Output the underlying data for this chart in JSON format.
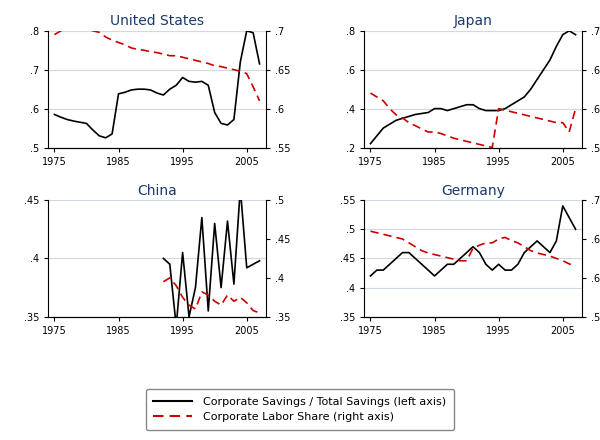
{
  "title_color": "#1a3a6b",
  "countries": [
    "United States",
    "Japan",
    "China",
    "Germany"
  ],
  "us": {
    "years_left": [
      1975,
      1976,
      1977,
      1978,
      1979,
      1980,
      1981,
      1982,
      1983,
      1984,
      1985,
      1986,
      1987,
      1988,
      1989,
      1990,
      1991,
      1992,
      1993,
      1994,
      1995,
      1996,
      1997,
      1998,
      1999,
      2000,
      2001,
      2002,
      2003,
      2004,
      2005,
      2006,
      2007
    ],
    "left_vals": [
      0.585,
      0.578,
      0.572,
      0.568,
      0.565,
      0.562,
      0.545,
      0.53,
      0.525,
      0.535,
      0.638,
      0.642,
      0.648,
      0.65,
      0.65,
      0.648,
      0.64,
      0.635,
      0.65,
      0.66,
      0.68,
      0.67,
      0.668,
      0.67,
      0.66,
      0.59,
      0.562,
      0.558,
      0.572,
      0.72,
      0.8,
      0.795,
      0.715
    ],
    "years_right": [
      1975,
      1976,
      1977,
      1978,
      1979,
      1980,
      1981,
      1982,
      1983,
      1984,
      1985,
      1986,
      1987,
      1988,
      1989,
      1990,
      1991,
      1992,
      1993,
      1994,
      1995,
      1996,
      1997,
      1998,
      1999,
      2000,
      2001,
      2002,
      2003,
      2004,
      2005,
      2006,
      2007
    ],
    "right_vals": [
      0.695,
      0.7,
      0.705,
      0.706,
      0.704,
      0.702,
      0.7,
      0.698,
      0.692,
      0.688,
      0.685,
      0.682,
      0.678,
      0.676,
      0.675,
      0.673,
      0.672,
      0.67,
      0.668,
      0.668,
      0.666,
      0.664,
      0.662,
      0.66,
      0.658,
      0.655,
      0.654,
      0.652,
      0.65,
      0.648,
      0.645,
      0.628,
      0.61
    ],
    "ylim_left": [
      0.5,
      0.8
    ],
    "ylim_right": [
      0.55,
      0.7
    ],
    "yticks_left": [
      0.5,
      0.6,
      0.7,
      0.8
    ],
    "yticks_right": [
      0.55,
      0.6,
      0.65,
      0.7
    ],
    "ytick_labels_left": [
      ".5",
      ".6",
      ".7",
      ".8"
    ],
    "ytick_labels_right": [
      ".55",
      ".6",
      ".65",
      ".7"
    ]
  },
  "japan": {
    "years_left": [
      1975,
      1976,
      1977,
      1978,
      1979,
      1980,
      1981,
      1982,
      1983,
      1984,
      1985,
      1986,
      1987,
      1988,
      1989,
      1990,
      1991,
      1992,
      1993,
      1994,
      1995,
      1996,
      1997,
      1998,
      1999,
      2000,
      2001,
      2002,
      2003,
      2004,
      2005,
      2006,
      2007
    ],
    "left_vals": [
      0.22,
      0.26,
      0.3,
      0.32,
      0.34,
      0.35,
      0.36,
      0.37,
      0.375,
      0.38,
      0.4,
      0.4,
      0.39,
      0.4,
      0.41,
      0.42,
      0.42,
      0.4,
      0.39,
      0.39,
      0.39,
      0.4,
      0.42,
      0.44,
      0.46,
      0.5,
      0.55,
      0.6,
      0.65,
      0.72,
      0.78,
      0.8,
      0.78
    ],
    "years_right": [
      1975,
      1976,
      1977,
      1978,
      1979,
      1980,
      1981,
      1982,
      1983,
      1984,
      1985,
      1986,
      1987,
      1988,
      1989,
      1990,
      1991,
      1992,
      1993,
      1994,
      1995,
      1996,
      1997,
      1998,
      1999,
      2000,
      2001,
      2002,
      2003,
      2004,
      2005,
      2006,
      2007
    ],
    "right_vals": [
      0.62,
      0.615,
      0.61,
      0.6,
      0.592,
      0.588,
      0.582,
      0.578,
      0.574,
      0.57,
      0.57,
      0.568,
      0.565,
      0.562,
      0.56,
      0.558,
      0.556,
      0.554,
      0.552,
      0.55,
      0.6,
      0.598,
      0.596,
      0.594,
      0.592,
      0.59,
      0.588,
      0.586,
      0.584,
      0.582,
      0.582,
      0.57,
      0.6
    ],
    "ylim_left": [
      0.2,
      0.8
    ],
    "ylim_right": [
      0.55,
      0.7
    ],
    "yticks_left": [
      0.2,
      0.4,
      0.6,
      0.8
    ],
    "yticks_right": [
      0.55,
      0.6,
      0.65,
      0.7
    ],
    "ytick_labels_left": [
      ".2",
      ".4",
      ".6",
      ".8"
    ],
    "ytick_labels_right": [
      ".55",
      ".6",
      ".65",
      ".7"
    ]
  },
  "china": {
    "years_left": [
      1992,
      1993,
      1994,
      1995,
      1996,
      1997,
      1998,
      1999,
      2000,
      2001,
      2002,
      2003,
      2004,
      2005,
      2006,
      2007
    ],
    "left_vals": [
      0.4,
      0.395,
      0.342,
      0.405,
      0.35,
      0.375,
      0.435,
      0.355,
      0.43,
      0.375,
      0.432,
      0.378,
      0.46,
      0.392,
      0.395,
      0.398
    ],
    "years_right": [
      1992,
      1993,
      1994,
      1995,
      1996,
      1997,
      1998,
      1999,
      2000,
      2001,
      2002,
      2003,
      2004,
      2005,
      2006,
      2007
    ],
    "right_vals": [
      0.395,
      0.4,
      0.39,
      0.375,
      0.365,
      0.36,
      0.382,
      0.378,
      0.37,
      0.365,
      0.378,
      0.37,
      0.375,
      0.368,
      0.358,
      0.355
    ],
    "ylim_left": [
      0.35,
      0.45
    ],
    "ylim_right": [
      0.35,
      0.5
    ],
    "yticks_left": [
      0.35,
      0.4,
      0.45
    ],
    "yticks_right": [
      0.35,
      0.4,
      0.45,
      0.5
    ],
    "ytick_labels_left": [
      ".35",
      ".4",
      ".45"
    ],
    "ytick_labels_right": [
      ".35",
      ".4",
      ".45",
      ".5"
    ]
  },
  "germany": {
    "years_left": [
      1975,
      1976,
      1977,
      1978,
      1979,
      1980,
      1981,
      1982,
      1983,
      1984,
      1985,
      1986,
      1987,
      1988,
      1989,
      1990,
      1991,
      1992,
      1993,
      1994,
      1995,
      1996,
      1997,
      1998,
      1999,
      2000,
      2001,
      2002,
      2003,
      2004,
      2005,
      2006,
      2007
    ],
    "left_vals": [
      0.42,
      0.43,
      0.43,
      0.44,
      0.45,
      0.46,
      0.46,
      0.45,
      0.44,
      0.43,
      0.42,
      0.43,
      0.44,
      0.44,
      0.45,
      0.46,
      0.47,
      0.46,
      0.44,
      0.43,
      0.44,
      0.43,
      0.43,
      0.44,
      0.46,
      0.47,
      0.48,
      0.47,
      0.46,
      0.48,
      0.54,
      0.52,
      0.5
    ],
    "years_right": [
      1975,
      1976,
      1977,
      1978,
      1979,
      1980,
      1981,
      1982,
      1983,
      1984,
      1985,
      1986,
      1987,
      1988,
      1989,
      1990,
      1991,
      1992,
      1993,
      1994,
      1995,
      1996,
      1997,
      1998,
      1999,
      2000,
      2001,
      2002,
      2003,
      2004,
      2005,
      2006,
      2007
    ],
    "right_vals": [
      0.66,
      0.658,
      0.656,
      0.654,
      0.652,
      0.65,
      0.645,
      0.64,
      0.635,
      0.632,
      0.63,
      0.628,
      0.626,
      0.624,
      0.622,
      0.622,
      0.638,
      0.642,
      0.645,
      0.645,
      0.65,
      0.652,
      0.648,
      0.645,
      0.64,
      0.635,
      0.632,
      0.63,
      0.628,
      0.625,
      0.622,
      0.618,
      0.615
    ],
    "ylim_left": [
      0.35,
      0.55
    ],
    "ylim_right": [
      0.55,
      0.7
    ],
    "yticks_left": [
      0.35,
      0.4,
      0.45,
      0.5,
      0.55
    ],
    "yticks_right": [
      0.55,
      0.6,
      0.65,
      0.7
    ],
    "ytick_labels_left": [
      ".35",
      ".4",
      ".45",
      ".5",
      ".55"
    ],
    "ytick_labels_right": [
      ".55",
      ".6",
      ".65",
      ".7"
    ]
  },
  "xlim": [
    1974,
    2008
  ],
  "xticks": [
    1975,
    1985,
    1995,
    2005
  ],
  "line_color_left": "#000000",
  "line_color_right": "#cc0000",
  "legend_label_left": "Corporate Savings / Total Savings (left axis)",
  "legend_label_right": "Corporate Labor Share (right axis)",
  "grid_color": "#d0d8e8",
  "bg_color": "#ffffff"
}
